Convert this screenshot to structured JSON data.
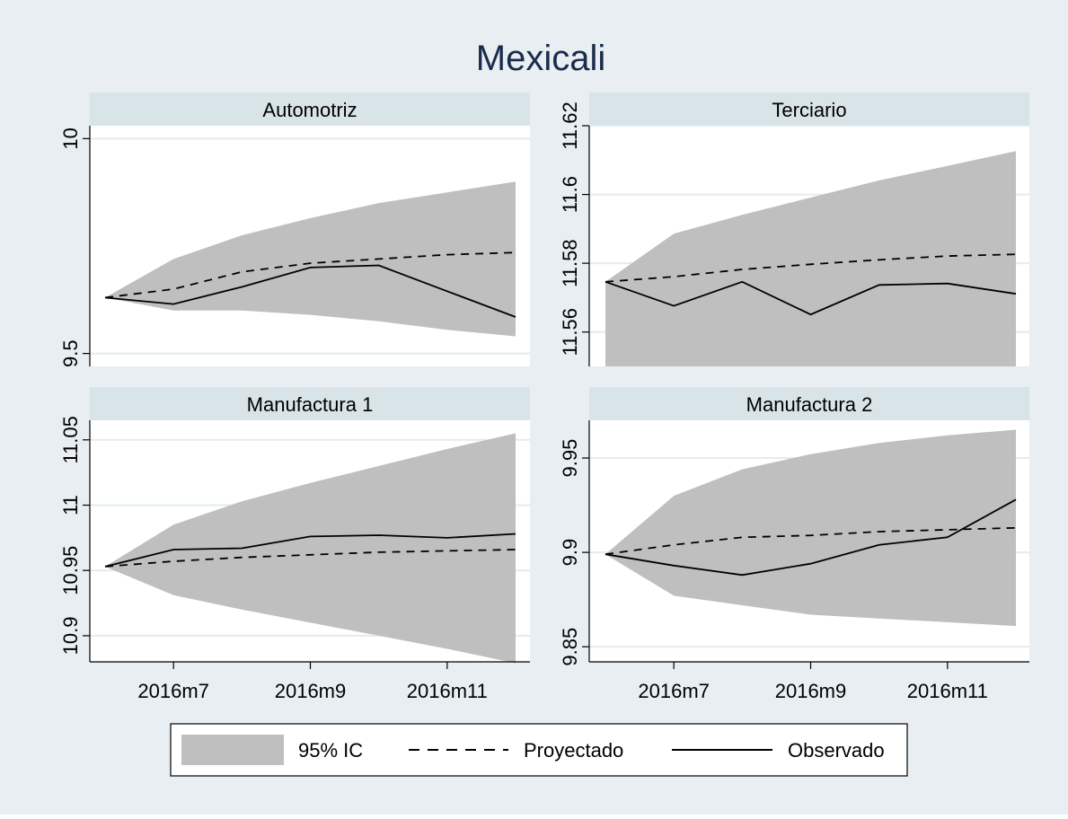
{
  "colors": {
    "outer_bg": "#e8eef1",
    "strip_bg": "#d9e4e9",
    "plot_bg": "#ffffff",
    "grid": "#e3ecef",
    "band": "#bfbfbf",
    "line": "#000000",
    "title": "#1a2b4c"
  },
  "figure_title": "Mexicali",
  "x_tick_labels": [
    "2016m7",
    "2016m9",
    "2016m11"
  ],
  "legend": {
    "ci_label": "95% IC",
    "projected_label": "Proyectado",
    "observed_label": "Observado",
    "placement": "bottom-center"
  },
  "chart_data": [
    {
      "type": "line",
      "title": "Automotriz",
      "x": [
        "2016m6",
        "2016m7",
        "2016m8",
        "2016m9",
        "2016m10",
        "2016m11",
        "2016m12"
      ],
      "ylim": [
        9.47,
        10.03
      ],
      "y_ticks": [
        "9.5",
        "10"
      ],
      "series": [
        {
          "name": "Observado",
          "values": [
            9.63,
            9.615,
            9.655,
            9.7,
            9.705,
            9.645,
            9.585
          ]
        },
        {
          "name": "Proyectado",
          "values": [
            9.63,
            9.65,
            9.69,
            9.71,
            9.72,
            9.73,
            9.735
          ]
        }
      ],
      "ci_upper": [
        9.63,
        9.72,
        9.775,
        9.815,
        9.85,
        9.875,
        9.9
      ],
      "ci_lower": [
        9.63,
        9.6,
        9.6,
        9.59,
        9.575,
        9.555,
        9.54
      ]
    },
    {
      "type": "line",
      "title": "Terciario",
      "x": [
        "2016m6",
        "2016m7",
        "2016m8",
        "2016m9",
        "2016m10",
        "2016m11",
        "2016m12"
      ],
      "ylim": [
        11.55,
        11.62
      ],
      "y_ticks": [
        "11.56",
        "11.58",
        "11.6",
        "11.62"
      ],
      "series": [
        {
          "name": "Observado",
          "values": [
            11.5746,
            11.5676,
            11.5746,
            11.5651,
            11.5737,
            11.5741,
            11.5711
          ]
        },
        {
          "name": "Proyectado",
          "values": [
            11.5746,
            11.5761,
            11.5782,
            11.5797,
            11.581,
            11.5821,
            11.5826
          ]
        }
      ],
      "ci_upper": [
        11.5746,
        11.5886,
        11.5941,
        11.5991,
        11.6041,
        11.6083,
        11.6126
      ]
    }
  ]
}
